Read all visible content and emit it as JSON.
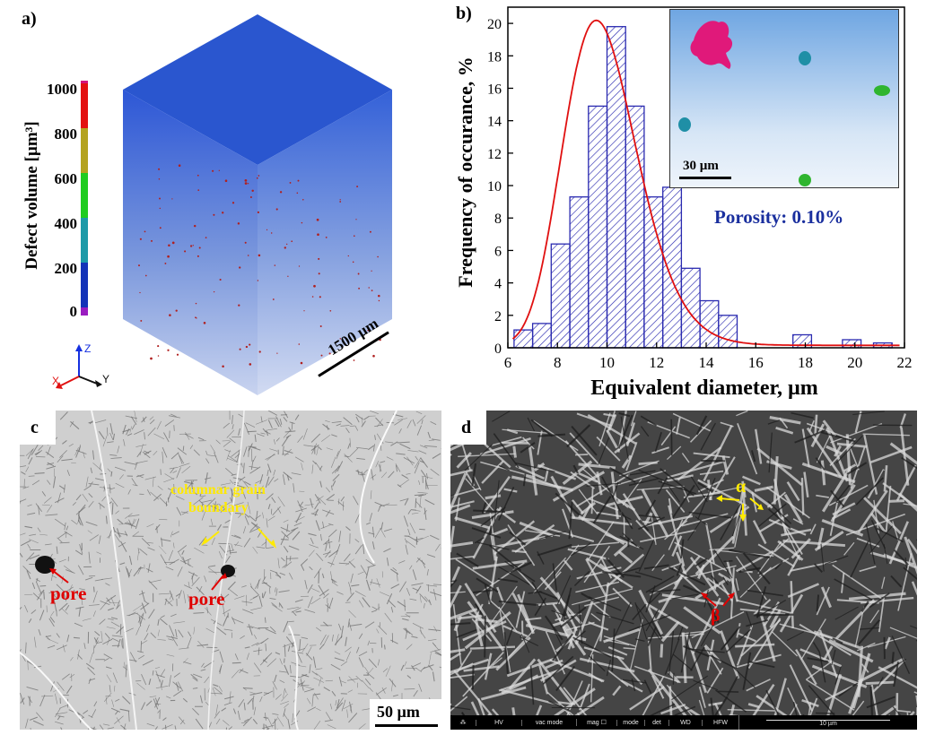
{
  "panel_a": {
    "letter": "a)",
    "colorbar_title": "Defect volume [µm³]",
    "colorbar_ticks": [
      "1000",
      "800",
      "600",
      "400",
      "200",
      "0"
    ],
    "colorbar_colors": [
      "#d4147c",
      "#e31010",
      "#b4a31f",
      "#1fcc1f",
      "#1e9aa8",
      "#1433b8",
      "#9a1dc0"
    ],
    "axes": {
      "z": "Z",
      "x": "X",
      "y": "Y"
    },
    "scale_bar": "1500 µm"
  },
  "panel_b": {
    "letter": "b)",
    "inset_scale": "30 µm",
    "porosity": "Porosity: 0.10%"
  },
  "chart_data": {
    "type": "bar",
    "xlabel": "Equivalent diameter, µm",
    "ylabel": "Frequency of occurance, %",
    "xlim": [
      6,
      22
    ],
    "ylim": [
      0,
      21
    ],
    "x_ticks": [
      6,
      8,
      10,
      12,
      14,
      16,
      18,
      20,
      22
    ],
    "y_ticks": [
      0,
      2,
      4,
      6,
      8,
      10,
      12,
      14,
      16,
      18,
      20
    ],
    "bin_width": 0.75,
    "bin_starts": [
      6.25,
      7,
      7.75,
      8.5,
      9.25,
      10,
      10.75,
      11.5,
      12.25,
      13,
      13.75,
      14.5,
      17.5,
      19.5,
      20.75
    ],
    "values": [
      1.1,
      1.5,
      6.4,
      9.3,
      14.9,
      19.8,
      14.9,
      9.3,
      9.9,
      4.9,
      2.9,
      2.0,
      0.8,
      0.5,
      0.3
    ],
    "fit": {
      "type": "lognormal",
      "color": "#e01010"
    },
    "bar_color": "#2a2ab0"
  },
  "panel_c": {
    "letter": "c",
    "boundary_label_line1": "columnar grain",
    "boundary_label_line2": "boundary",
    "pore_label_1": "pore",
    "pore_label_2": "pore",
    "scale_bar": "50 µm"
  },
  "panel_d": {
    "letter": "d",
    "alpha": "α",
    "beta": "β",
    "sem_bar": {
      "hv": "HV",
      "vac": "vac mode",
      "mag": "mag ☐",
      "mode": "mode",
      "det": "det",
      "wd": "WD",
      "hfw": "HFW",
      "scale": "10 µm"
    }
  }
}
